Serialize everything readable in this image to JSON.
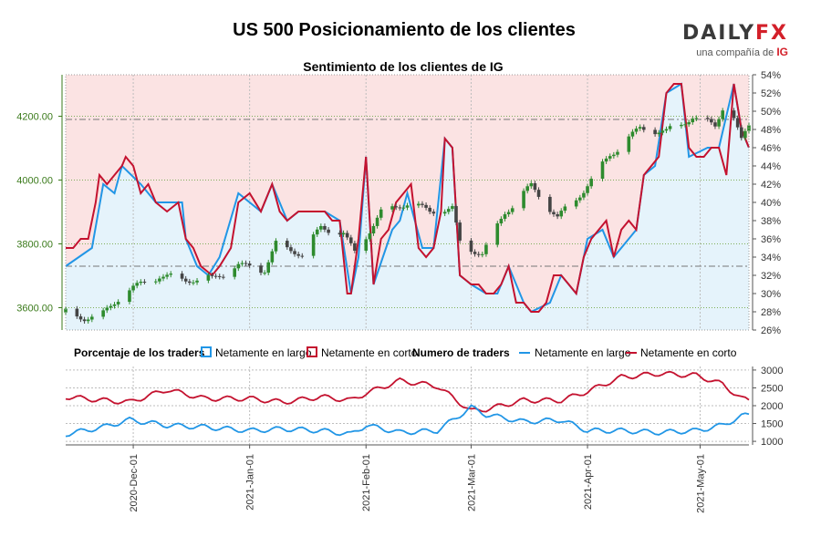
{
  "header": {
    "title": "US 500 Posicionamiento de los clientes",
    "subtitle": "Sentimiento de los clientes de IG"
  },
  "logo": {
    "brand_left": "DAILY",
    "brand_right": "FX",
    "tagline": "una compañía de",
    "tagline_brand": "IG"
  },
  "colors": {
    "long": "#2196e6",
    "short": "#c4122f",
    "long_fill": "#e5f3fb",
    "short_fill": "#fbe3e3",
    "candle_up": "#2e8b2e",
    "candle_down": "#444444",
    "price_axis": "#3a7a1a"
  },
  "chart_data": [
    {
      "type": "candlestick+line",
      "title": "Sentimiento de los clientes de IG",
      "price_axis": {
        "ticks": [
          "3600.00",
          "3800.00",
          "4000.00",
          "4200.00"
        ],
        "range": [
          3530,
          4330
        ]
      },
      "percent_axis": {
        "ticks": [
          "26%",
          "28%",
          "30%",
          "32%",
          "34%",
          "36%",
          "38%",
          "40%",
          "42%",
          "44%",
          "46%",
          "48%",
          "50%",
          "52%",
          "54%"
        ],
        "range": [
          26,
          54
        ]
      },
      "x_ticks": [
        "2020-Dec-01",
        "2021-Jan-01",
        "2021-Feb-01",
        "2021-Mar-01",
        "2021-Apr-01",
        "2021-May-01"
      ],
      "x_range": [
        "2020-11-13",
        "2021-05-14"
      ],
      "reference_levels": {
        "price": 4190,
        "percent_a": 50,
        "percent_b": 33
      },
      "price_close": [
        [
          "2020-11-13",
          3585
        ],
        [
          "2020-11-18",
          3570
        ],
        [
          "2020-11-23",
          3580
        ],
        [
          "2020-11-27",
          3630
        ],
        [
          "2020-12-01",
          3660
        ],
        [
          "2020-12-08",
          3700
        ],
        [
          "2020-12-15",
          3690
        ],
        [
          "2020-12-22",
          3690
        ],
        [
          "2020-12-29",
          3730
        ],
        [
          "2021-01-05",
          3720
        ],
        [
          "2021-01-08",
          3800
        ],
        [
          "2021-01-15",
          3770
        ],
        [
          "2021-01-20",
          3850
        ],
        [
          "2021-01-26",
          3830
        ],
        [
          "2021-01-29",
          3770
        ],
        [
          "2021-02-05",
          3900
        ],
        [
          "2021-02-12",
          3930
        ],
        [
          "2021-02-18",
          3900
        ],
        [
          "2021-02-24",
          3910
        ],
        [
          "2021-02-26",
          3800
        ],
        [
          "2021-03-04",
          3770
        ],
        [
          "2021-03-10",
          3900
        ],
        [
          "2021-03-17",
          3980
        ],
        [
          "2021-03-24",
          3880
        ],
        [
          "2021-03-31",
          3970
        ],
        [
          "2021-04-07",
          4080
        ],
        [
          "2021-04-15",
          4160
        ],
        [
          "2021-04-22",
          4150
        ],
        [
          "2021-04-29",
          4200
        ],
        [
          "2021-05-05",
          4170
        ],
        [
          "2021-05-07",
          4230
        ],
        [
          "2021-05-10",
          4190
        ],
        [
          "2021-05-12",
          4120
        ],
        [
          "2021-05-14",
          4170
        ]
      ],
      "net_long_pct": [
        [
          "2020-11-13",
          33
        ],
        [
          "2020-11-20",
          35
        ],
        [
          "2020-11-23",
          42
        ],
        [
          "2020-11-26",
          41
        ],
        [
          "2020-11-28",
          44
        ],
        [
          "2020-12-03",
          42
        ],
        [
          "2020-12-07",
          40
        ],
        [
          "2020-12-14",
          40
        ],
        [
          "2020-12-15",
          36
        ],
        [
          "2020-12-18",
          33
        ],
        [
          "2020-12-21",
          32
        ],
        [
          "2020-12-24",
          34
        ],
        [
          "2020-12-29",
          41
        ],
        [
          "2021-01-04",
          39
        ],
        [
          "2021-01-07",
          42
        ],
        [
          "2021-01-11",
          38
        ],
        [
          "2021-01-14",
          39
        ],
        [
          "2021-01-21",
          39
        ],
        [
          "2021-01-25",
          38
        ],
        [
          "2021-01-28",
          30
        ],
        [
          "2021-01-30",
          34
        ],
        [
          "2021-02-01",
          45
        ],
        [
          "2021-02-03",
          31
        ],
        [
          "2021-02-08",
          37
        ],
        [
          "2021-02-10",
          38
        ],
        [
          "2021-02-12",
          41
        ],
        [
          "2021-02-16",
          35
        ],
        [
          "2021-02-19",
          35
        ],
        [
          "2021-02-22",
          47
        ],
        [
          "2021-02-24",
          46
        ],
        [
          "2021-02-26",
          32
        ],
        [
          "2021-03-01",
          31
        ],
        [
          "2021-03-05",
          30
        ],
        [
          "2021-03-08",
          30
        ],
        [
          "2021-03-11",
          33
        ],
        [
          "2021-03-15",
          29
        ],
        [
          "2021-03-17",
          28
        ],
        [
          "2021-03-22",
          29
        ],
        [
          "2021-03-25",
          32
        ],
        [
          "2021-03-29",
          30
        ],
        [
          "2021-04-01",
          36
        ],
        [
          "2021-04-05",
          37
        ],
        [
          "2021-04-08",
          34
        ],
        [
          "2021-04-14",
          37
        ],
        [
          "2021-04-16",
          43
        ],
        [
          "2021-04-19",
          44
        ],
        [
          "2021-04-22",
          52
        ],
        [
          "2021-04-26",
          53
        ],
        [
          "2021-04-28",
          45
        ],
        [
          "2021-05-03",
          46
        ],
        [
          "2021-05-06",
          46
        ],
        [
          "2021-05-10",
          53
        ],
        [
          "2021-05-12",
          48
        ],
        [
          "2021-05-14",
          46
        ]
      ],
      "net_short_pct": [
        [
          "2020-11-13",
          35
        ],
        [
          "2020-11-15",
          35
        ],
        [
          "2020-11-17",
          36
        ],
        [
          "2020-11-19",
          36
        ],
        [
          "2020-11-21",
          40
        ],
        [
          "2020-11-22",
          43
        ],
        [
          "2020-11-24",
          42
        ],
        [
          "2020-11-26",
          43
        ],
        [
          "2020-11-28",
          44
        ],
        [
          "2020-11-29",
          45
        ],
        [
          "2020-12-01",
          44
        ],
        [
          "2020-12-03",
          41
        ],
        [
          "2020-12-05",
          42
        ],
        [
          "2020-12-07",
          40
        ],
        [
          "2020-12-10",
          39
        ],
        [
          "2020-12-13",
          40
        ],
        [
          "2020-12-15",
          36
        ],
        [
          "2020-12-17",
          35
        ],
        [
          "2020-12-19",
          33
        ],
        [
          "2020-12-22",
          32
        ],
        [
          "2020-12-24",
          33
        ],
        [
          "2020-12-27",
          35
        ],
        [
          "2020-12-29",
          40
        ],
        [
          "2021-01-01",
          41
        ],
        [
          "2021-01-04",
          39
        ],
        [
          "2021-01-07",
          42
        ],
        [
          "2021-01-09",
          39
        ],
        [
          "2021-01-11",
          38
        ],
        [
          "2021-01-14",
          39
        ],
        [
          "2021-01-18",
          39
        ],
        [
          "2021-01-21",
          39
        ],
        [
          "2021-01-23",
          38
        ],
        [
          "2021-01-25",
          38
        ],
        [
          "2021-01-27",
          30
        ],
        [
          "2021-01-28",
          30
        ],
        [
          "2021-01-30",
          36
        ],
        [
          "2021-02-01",
          45
        ],
        [
          "2021-02-03",
          31
        ],
        [
          "2021-02-05",
          36
        ],
        [
          "2021-02-07",
          37
        ],
        [
          "2021-02-09",
          40
        ],
        [
          "2021-02-11",
          41
        ],
        [
          "2021-02-13",
          42
        ],
        [
          "2021-02-15",
          35
        ],
        [
          "2021-02-17",
          34
        ],
        [
          "2021-02-19",
          35
        ],
        [
          "2021-02-21",
          39
        ],
        [
          "2021-02-22",
          47
        ],
        [
          "2021-02-24",
          46
        ],
        [
          "2021-02-26",
          32
        ],
        [
          "2021-03-01",
          31
        ],
        [
          "2021-03-03",
          31
        ],
        [
          "2021-03-05",
          30
        ],
        [
          "2021-03-07",
          30
        ],
        [
          "2021-03-09",
          31
        ],
        [
          "2021-03-11",
          33
        ],
        [
          "2021-03-13",
          29
        ],
        [
          "2021-03-15",
          29
        ],
        [
          "2021-03-17",
          28
        ],
        [
          "2021-03-19",
          28
        ],
        [
          "2021-03-21",
          29
        ],
        [
          "2021-03-23",
          32
        ],
        [
          "2021-03-25",
          32
        ],
        [
          "2021-03-27",
          31
        ],
        [
          "2021-03-29",
          30
        ],
        [
          "2021-03-31",
          34
        ],
        [
          "2021-04-02",
          36
        ],
        [
          "2021-04-04",
          37
        ],
        [
          "2021-04-06",
          38
        ],
        [
          "2021-04-08",
          34
        ],
        [
          "2021-04-10",
          37
        ],
        [
          "2021-04-12",
          38
        ],
        [
          "2021-04-14",
          37
        ],
        [
          "2021-04-16",
          43
        ],
        [
          "2021-04-18",
          44
        ],
        [
          "2021-04-20",
          45
        ],
        [
          "2021-04-22",
          52
        ],
        [
          "2021-04-24",
          53
        ],
        [
          "2021-04-26",
          53
        ],
        [
          "2021-04-28",
          46
        ],
        [
          "2021-04-30",
          45
        ],
        [
          "2021-05-02",
          45
        ],
        [
          "2021-05-04",
          46
        ],
        [
          "2021-05-06",
          46
        ],
        [
          "2021-05-08",
          43
        ],
        [
          "2021-05-10",
          53
        ],
        [
          "2021-05-12",
          48
        ],
        [
          "2021-05-14",
          46
        ]
      ]
    },
    {
      "type": "line",
      "legend_left": {
        "title": "Porcentaje de los traders",
        "long": "Netamente en largo",
        "short": "Netamente en corto"
      },
      "legend_right": {
        "title": "Numero de traders",
        "long": "Netamente en largo",
        "short": "Netamente en corto"
      },
      "y_axis": {
        "ticks": [
          "1000",
          "1500",
          "2000",
          "2500",
          "3000"
        ],
        "range": [
          900,
          3100
        ]
      },
      "net_long_count": [
        [
          "2020-11-13",
          1200
        ],
        [
          "2020-11-23",
          1400
        ],
        [
          "2020-11-30",
          1600
        ],
        [
          "2020-12-10",
          1450
        ],
        [
          "2020-12-20",
          1400
        ],
        [
          "2021-01-01",
          1300
        ],
        [
          "2021-01-10",
          1350
        ],
        [
          "2021-01-20",
          1300
        ],
        [
          "2021-01-28",
          1200
        ],
        [
          "2021-02-01",
          1450
        ],
        [
          "2021-02-10",
          1250
        ],
        [
          "2021-02-20",
          1300
        ],
        [
          "2021-03-01",
          1950
        ],
        [
          "2021-03-05",
          1750
        ],
        [
          "2021-03-15",
          1550
        ],
        [
          "2021-03-25",
          1600
        ],
        [
          "2021-04-01",
          1300
        ],
        [
          "2021-04-10",
          1300
        ],
        [
          "2021-04-20",
          1250
        ],
        [
          "2021-04-30",
          1300
        ],
        [
          "2021-05-07",
          1450
        ],
        [
          "2021-05-12",
          1700
        ],
        [
          "2021-05-14",
          1750
        ]
      ],
      "net_short_count": [
        [
          "2020-11-13",
          2250
        ],
        [
          "2020-11-23",
          2150
        ],
        [
          "2020-11-30",
          2100
        ],
        [
          "2020-12-10",
          2450
        ],
        [
          "2020-12-20",
          2200
        ],
        [
          "2021-01-01",
          2200
        ],
        [
          "2021-01-10",
          2100
        ],
        [
          "2021-01-20",
          2250
        ],
        [
          "2021-01-28",
          2150
        ],
        [
          "2021-02-01",
          2350
        ],
        [
          "2021-02-10",
          2700
        ],
        [
          "2021-02-20",
          2550
        ],
        [
          "2021-03-01",
          1850
        ],
        [
          "2021-03-05",
          1900
        ],
        [
          "2021-03-15",
          2150
        ],
        [
          "2021-03-25",
          2150
        ],
        [
          "2021-04-01",
          2400
        ],
        [
          "2021-04-10",
          2800
        ],
        [
          "2021-04-20",
          2900
        ],
        [
          "2021-04-30",
          2850
        ],
        [
          "2021-05-07",
          2600
        ],
        [
          "2021-05-12",
          2200
        ],
        [
          "2021-05-14",
          2150
        ]
      ]
    }
  ]
}
